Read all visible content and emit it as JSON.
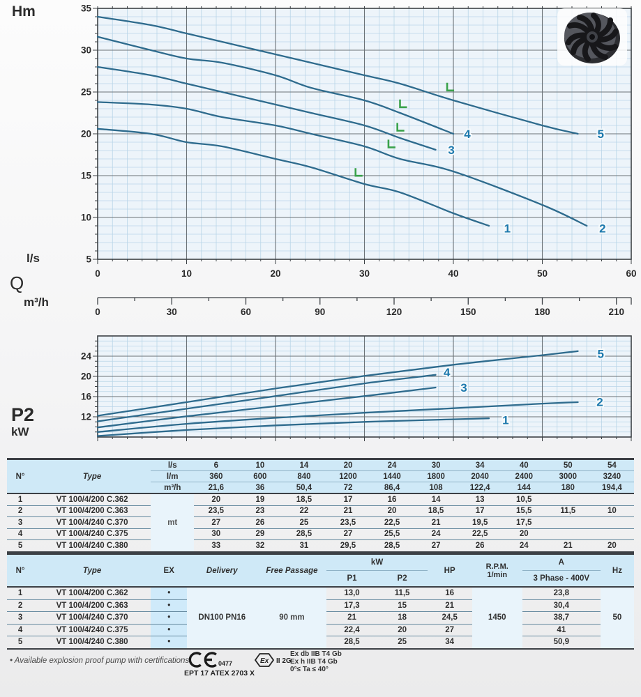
{
  "colors": {
    "curve": "#2e6b8d",
    "curve_label": "#1d79ad",
    "bep_marker": "#3aa24b",
    "grid_minor": "#b9d5e8",
    "grid_major": "#6b7277",
    "axis": "#3c4145",
    "plot_bg": "#edf4fa",
    "table_header_bg": "#cfe9f7",
    "ex_header_bg": "#a9dcf3"
  },
  "chart_data": [
    {
      "type": "line",
      "name": "head-vs-flow",
      "ylabel": "Hm",
      "x1label": "l/s",
      "qlabel": "Q",
      "x2label": "m³/h",
      "ylim": [
        5,
        35
      ],
      "xlim_ls": [
        0,
        60
      ],
      "xlim_m3h": [
        0,
        216
      ],
      "y_ticks": [
        5,
        10,
        15,
        20,
        25,
        30,
        35
      ],
      "x_ticks_ls": [
        0,
        10,
        20,
        30,
        40,
        50,
        60
      ],
      "x_ticks_m3h": [
        0,
        30,
        60,
        90,
        120,
        150,
        180,
        210
      ],
      "grid": "on",
      "series": [
        {
          "name": "1",
          "points": [
            [
              0,
              20.6
            ],
            [
              6,
              20
            ],
            [
              10,
              19
            ],
            [
              14,
              18.5
            ],
            [
              20,
              17
            ],
            [
              24,
              16
            ],
            [
              30,
              14
            ],
            [
              34,
              13
            ],
            [
              40,
              10.5
            ],
            [
              44,
              9
            ]
          ],
          "label_at": [
            45.7,
            8.7
          ]
        },
        {
          "name": "2",
          "points": [
            [
              0,
              23.8
            ],
            [
              6,
              23.5
            ],
            [
              10,
              23
            ],
            [
              14,
              22
            ],
            [
              20,
              21
            ],
            [
              24,
              20
            ],
            [
              30,
              18.5
            ],
            [
              34,
              17
            ],
            [
              40,
              15.5
            ],
            [
              50,
              11.5
            ],
            [
              55,
              9
            ]
          ],
          "label_at": [
            56.4,
            8.7
          ]
        },
        {
          "name": "3",
          "points": [
            [
              0,
              28
            ],
            [
              6,
              27
            ],
            [
              10,
              26
            ],
            [
              14,
              25
            ],
            [
              20,
              23.5
            ],
            [
              24,
              22.5
            ],
            [
              30,
              21
            ],
            [
              34,
              19.5
            ],
            [
              38,
              18.1
            ]
          ],
          "label_at": [
            39.4,
            18.1
          ]
        },
        {
          "name": "4",
          "points": [
            [
              0,
              31.6
            ],
            [
              6,
              30
            ],
            [
              10,
              29
            ],
            [
              14,
              28.5
            ],
            [
              20,
              27
            ],
            [
              24,
              25.5
            ],
            [
              30,
              24
            ],
            [
              34,
              22.5
            ],
            [
              40,
              20
            ]
          ],
          "label_at": [
            41.2,
            20
          ]
        },
        {
          "name": "5",
          "points": [
            [
              0,
              34
            ],
            [
              6,
              33
            ],
            [
              10,
              32
            ],
            [
              14,
              31
            ],
            [
              20,
              29.5
            ],
            [
              24,
              28.5
            ],
            [
              30,
              27
            ],
            [
              34,
              26
            ],
            [
              40,
              24
            ],
            [
              50,
              21
            ],
            [
              54,
              20
            ]
          ],
          "label_at": [
            56.2,
            20
          ]
        }
      ],
      "bep_markers": [
        [
          29,
          14.9
        ],
        [
          32.7,
          18.3
        ],
        [
          33.7,
          20.3
        ],
        [
          34,
          23.1
        ],
        [
          39.3,
          25.1
        ]
      ]
    },
    {
      "type": "line",
      "name": "power-vs-flow",
      "ylabel": "P2",
      "yunit": "kW",
      "ylim": [
        8,
        28
      ],
      "xlim_ls": [
        0,
        60
      ],
      "y_ticks": [
        12,
        16,
        20,
        24
      ],
      "grid": "on",
      "series": [
        {
          "name": "1",
          "points": [
            [
              0,
              8.2
            ],
            [
              10,
              9.4
            ],
            [
              20,
              10.3
            ],
            [
              30,
              11.0
            ],
            [
              40,
              11.5
            ],
            [
              44,
              11.7
            ]
          ],
          "label_at": [
            45.5,
            11.4
          ]
        },
        {
          "name": "2",
          "points": [
            [
              0,
              9.0
            ],
            [
              10,
              10.6
            ],
            [
              20,
              11.8
            ],
            [
              30,
              12.8
            ],
            [
              40,
              13.7
            ],
            [
              50,
              14.6
            ],
            [
              54,
              14.9
            ]
          ],
          "label_at": [
            56.1,
            15.0
          ]
        },
        {
          "name": "3",
          "points": [
            [
              0,
              9.9
            ],
            [
              10,
              12.1
            ],
            [
              20,
              14.1
            ],
            [
              30,
              16.1
            ],
            [
              38,
              17.8
            ]
          ],
          "label_at": [
            40.8,
            17.8
          ]
        },
        {
          "name": "4",
          "points": [
            [
              0,
              11.1
            ],
            [
              10,
              13.6
            ],
            [
              20,
              16.1
            ],
            [
              30,
              18.6
            ],
            [
              38,
              20.3
            ]
          ],
          "label_at": [
            38.9,
            20.8
          ]
        },
        {
          "name": "5",
          "points": [
            [
              0,
              12.2
            ],
            [
              10,
              14.9
            ],
            [
              20,
              17.6
            ],
            [
              30,
              20.1
            ],
            [
              40,
              22.3
            ],
            [
              50,
              24.2
            ],
            [
              54,
              25
            ]
          ],
          "label_at": [
            56.2,
            24.5
          ]
        }
      ]
    }
  ],
  "table1": {
    "col_no": "N°",
    "col_type": "Type",
    "unit_rows": [
      {
        "unit": "l/s",
        "values": [
          "6",
          "10",
          "14",
          "20",
          "24",
          "30",
          "34",
          "40",
          "50",
          "54"
        ]
      },
      {
        "unit": "l/m",
        "values": [
          "360",
          "600",
          "840",
          "1200",
          "1440",
          "1800",
          "2040",
          "2400",
          "3000",
          "3240"
        ]
      },
      {
        "unit": "m³/h",
        "values": [
          "21,6",
          "36",
          "50,4",
          "72",
          "86,4",
          "108",
          "122,4",
          "144",
          "180",
          "194,4"
        ]
      }
    ],
    "body_unit": "mt",
    "rows": [
      {
        "no": "1",
        "type": "VT 100/4/200 C.362",
        "values": [
          "20",
          "19",
          "18,5",
          "17",
          "16",
          "14",
          "13",
          "10,5",
          "",
          ""
        ]
      },
      {
        "no": "2",
        "type": "VT 100/4/200 C.363",
        "values": [
          "23,5",
          "23",
          "22",
          "21",
          "20",
          "18,5",
          "17",
          "15,5",
          "11,5",
          "10"
        ]
      },
      {
        "no": "3",
        "type": "VT 100/4/240 C.370",
        "values": [
          "27",
          "26",
          "25",
          "23,5",
          "22,5",
          "21",
          "19,5",
          "17,5",
          "",
          ""
        ]
      },
      {
        "no": "4",
        "type": "VT 100/4/240 C.375",
        "values": [
          "30",
          "29",
          "28,5",
          "27",
          "25,5",
          "24",
          "22,5",
          "20",
          "",
          ""
        ]
      },
      {
        "no": "5",
        "type": "VT 100/4/240 C.380",
        "values": [
          "33",
          "32",
          "31",
          "29,5",
          "28,5",
          "27",
          "26",
          "24",
          "21",
          "20"
        ]
      }
    ]
  },
  "table2": {
    "headers": {
      "no": "N°",
      "type": "Type",
      "ex": "EX",
      "delivery": "Delivery",
      "free_passage": "Free Passage",
      "kw": "kW",
      "p1": "P1",
      "p2": "P2",
      "hp": "HP",
      "rpm_line1": "R.P.M.",
      "rpm_line2": "1/min",
      "a": "A",
      "phase": "3 Phase - 400V",
      "hz": "Hz"
    },
    "delivery_value": "DN100 PN16",
    "free_passage_value": "90 mm",
    "rpm_value": "1450",
    "hz_value": "50",
    "rows": [
      {
        "no": "1",
        "type": "VT 100/4/200 C.362",
        "ex": "•",
        "p1": "13,0",
        "p2": "11,5",
        "hp": "16",
        "a": "23,8"
      },
      {
        "no": "2",
        "type": "VT 100/4/200 C.363",
        "ex": "•",
        "p1": "17,3",
        "p2": "15",
        "hp": "21",
        "a": "30,4"
      },
      {
        "no": "3",
        "type": "VT 100/4/240 C.370",
        "ex": "•",
        "p1": "21",
        "p2": "18",
        "hp": "24,5",
        "a": "38,7"
      },
      {
        "no": "4",
        "type": "VT 100/4/240 C.375",
        "ex": "•",
        "p1": "22,4",
        "p2": "20",
        "hp": "27",
        "a": "41"
      },
      {
        "no": "5",
        "type": "VT 100/4/240 C.380",
        "ex": "•",
        "p1": "28,5",
        "p2": "25",
        "hp": "34",
        "a": "50,9"
      }
    ]
  },
  "footer": {
    "note": "• Available explosion proof pump with certifications",
    "ce_number": "0477",
    "atex_line": "EPT 17 ATEX 2703 X",
    "ex_symbol": "Ex",
    "ex_class": "II 2G",
    "cert_lines": [
      "Ex db IIB T4 Gb",
      "Ex h IIB T4 Gb",
      "0°≤ Ta ≤ 40°"
    ]
  }
}
